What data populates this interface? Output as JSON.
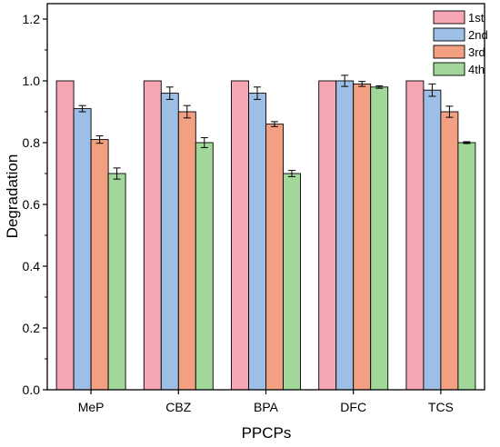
{
  "chart_data": {
    "type": "bar",
    "xlabel": "PPCPs",
    "ylabel": "Degradation",
    "categories": [
      "MeP",
      "CBZ",
      "BPA",
      "DFC",
      "TCS"
    ],
    "ylim": [
      0,
      1.25
    ],
    "yticks": [
      "0.0",
      "0.2",
      "0.4",
      "0.6",
      "0.8",
      "1.0",
      "1.2"
    ],
    "legend_position": "top-right",
    "grid": false,
    "series": [
      {
        "name": "1st",
        "color": "#f7a7b3",
        "values": [
          1.0,
          1.0,
          1.0,
          1.0,
          1.0
        ],
        "errors": [
          0,
          0,
          0,
          0,
          0
        ]
      },
      {
        "name": "2nd",
        "color": "#9dbfe6",
        "values": [
          0.91,
          0.96,
          0.96,
          1.0,
          0.97
        ],
        "errors": [
          0.01,
          0.02,
          0.02,
          0.018,
          0.02
        ]
      },
      {
        "name": "3rd",
        "color": "#f2a081",
        "values": [
          0.81,
          0.9,
          0.86,
          0.99,
          0.9
        ],
        "errors": [
          0.012,
          0.02,
          0.008,
          0.008,
          0.018
        ]
      },
      {
        "name": "4th",
        "color": "#a1d89a",
        "values": [
          0.7,
          0.8,
          0.7,
          0.98,
          0.8
        ],
        "errors": [
          0.018,
          0.016,
          0.01,
          0.004,
          0.003
        ]
      }
    ]
  }
}
